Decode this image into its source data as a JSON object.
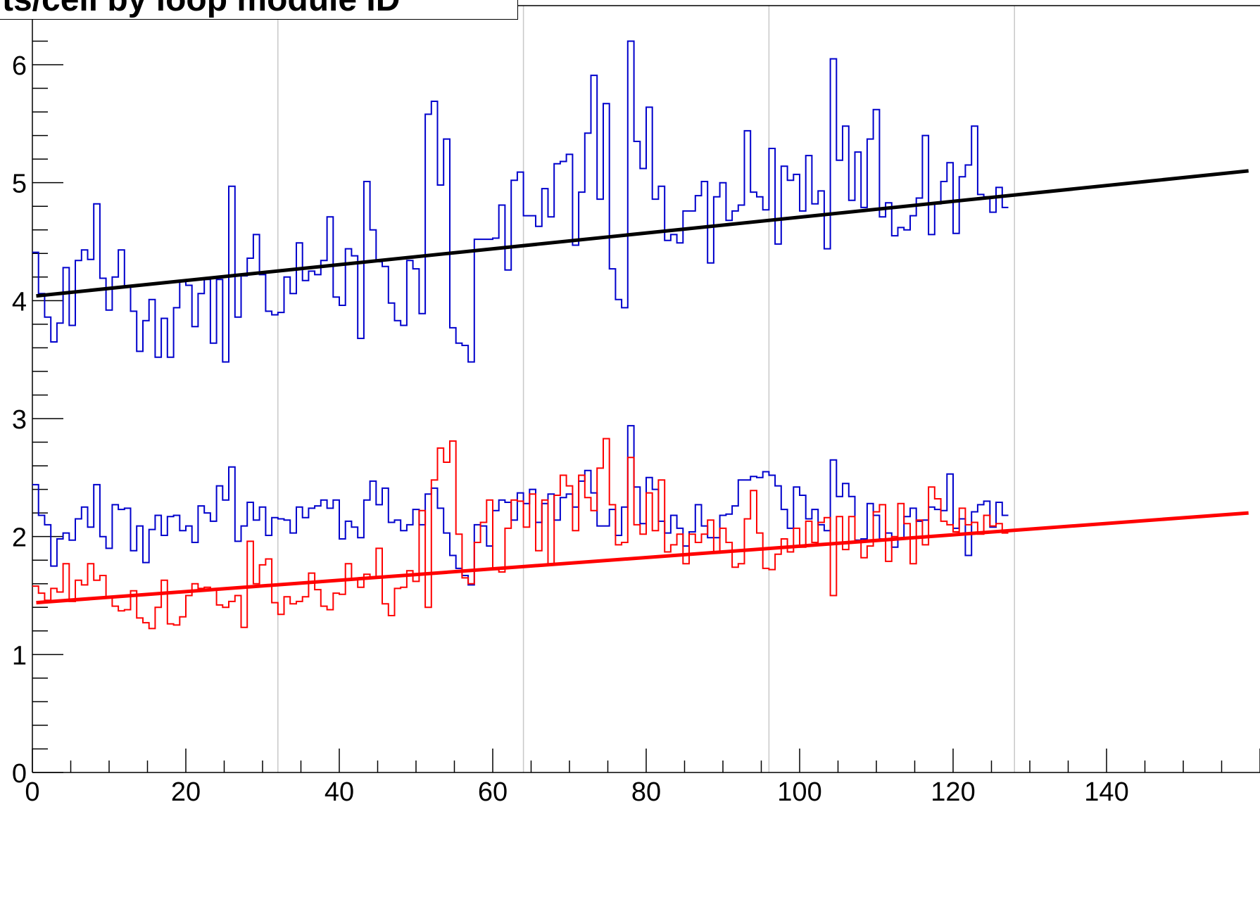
{
  "title": "ts/cell by loop module ID",
  "chart_data": {
    "type": "line",
    "title": "ts/cell by loop module ID",
    "xlabel": "",
    "ylabel": "",
    "xlim": [
      0,
      160
    ],
    "ylim": [
      0,
      6.3
    ],
    "x_ticks": [
      0,
      20,
      40,
      60,
      80,
      100,
      120,
      140
    ],
    "y_ticks": [
      0,
      1,
      2,
      3,
      4,
      5,
      6
    ],
    "vertical_grid_x": [
      32,
      64,
      96,
      128
    ],
    "colors": {
      "upper_hist": "#0000cc",
      "lower_hist_blue": "#0000cc",
      "lower_hist_red": "#ff0000",
      "fit_upper": "#000000",
      "fit_lower": "#ff0000",
      "grid": "#c8c8c8"
    },
    "bin_x_start": 0,
    "bin_width": 0.8,
    "series": [
      {
        "style": "step",
        "values": [
          4.41,
          4.06,
          3.86,
          3.65,
          3.81,
          4.28,
          3.79,
          4.34,
          4.43,
          4.35,
          4.82,
          4.19,
          3.92,
          4.2,
          4.43,
          4.12,
          3.91,
          3.57,
          3.83,
          4.01,
          3.52,
          3.85,
          3.52,
          3.94,
          4.16,
          4.13,
          3.78,
          4.06,
          4.18,
          3.64,
          4.18,
          3.48,
          4.97,
          3.86,
          4.21,
          4.36,
          4.56,
          4.22,
          3.91,
          3.88,
          3.9,
          4.2,
          4.06,
          4.49,
          4.17,
          4.25,
          4.22,
          4.34,
          4.71,
          4.03,
          3.96,
          4.44,
          4.38,
          3.68,
          5.01,
          4.6,
          4.33,
          4.29,
          3.98,
          3.83,
          3.79,
          4.34,
          4.27,
          3.89,
          5.58,
          5.69,
          4.98,
          5.37,
          3.77,
          3.64,
          3.62,
          3.48,
          4.52,
          4.52,
          4.52,
          4.53,
          4.81,
          4.26,
          5.02,
          5.09,
          4.72,
          4.72,
          4.63,
          4.95,
          4.71,
          5.16,
          5.18,
          5.24,
          4.47,
          4.92,
          5.42,
          5.91,
          4.86,
          5.67,
          4.27,
          4.01,
          3.94,
          6.2,
          5.35,
          5.12,
          5.64,
          4.86,
          4.97,
          4.51,
          4.56,
          4.49,
          4.76,
          4.76,
          4.89,
          5.01,
          4.32,
          4.88,
          5.0,
          4.68,
          4.76,
          4.81,
          5.44,
          4.92,
          4.88,
          4.77,
          5.29,
          4.48,
          5.14,
          5.02,
          5.07,
          4.76,
          5.23,
          4.82,
          4.93,
          4.44,
          6.05,
          5.19,
          5.48,
          4.85,
          5.26,
          4.79,
          5.37,
          5.62,
          4.71,
          4.83,
          4.55,
          4.62,
          4.6,
          4.72,
          4.87,
          5.4,
          4.56,
          4.82,
          5.01,
          5.17,
          4.57,
          5.05,
          5.15,
          5.48,
          4.9,
          4.88,
          4.75,
          4.96,
          4.79
        ]
      },
      {
        "style": "step",
        "values": [
          2.44,
          2.18,
          2.1,
          1.75,
          1.98,
          2.03,
          1.97,
          2.15,
          2.25,
          2.08,
          2.44,
          2.0,
          1.9,
          2.27,
          2.23,
          2.24,
          1.88,
          2.09,
          1.78,
          2.06,
          2.18,
          2.01,
          2.17,
          2.18,
          2.05,
          2.09,
          1.95,
          2.26,
          2.2,
          2.13,
          2.43,
          2.31,
          2.59,
          1.96,
          2.09,
          2.29,
          2.14,
          2.25,
          2.01,
          2.16,
          2.15,
          2.14,
          2.03,
          2.25,
          2.16,
          2.24,
          2.26,
          2.31,
          2.24,
          2.31,
          1.98,
          2.13,
          2.08,
          1.99,
          2.31,
          2.47,
          2.27,
          2.41,
          2.12,
          2.14,
          2.05,
          2.1,
          2.23,
          2.1,
          2.36,
          2.41,
          2.24,
          2.03,
          1.84,
          1.73,
          1.67,
          1.59,
          2.1,
          2.09,
          1.92,
          2.22,
          2.31,
          2.29,
          2.14,
          2.37,
          2.28,
          2.4,
          2.12,
          2.28,
          2.36,
          2.14,
          2.33,
          2.36,
          2.25,
          2.47,
          2.56,
          2.37,
          2.09,
          2.09,
          2.23,
          2.01,
          2.25,
          2.94,
          2.42,
          2.11,
          2.5,
          2.4,
          2.13,
          2.03,
          2.18,
          2.07,
          1.92,
          2.04,
          2.27,
          2.09,
          1.99,
          1.99,
          2.18,
          2.19,
          2.26,
          2.48,
          2.48,
          2.51,
          2.5,
          2.55,
          2.52,
          2.43,
          2.23,
          2.07,
          2.42,
          2.35,
          2.15,
          2.23,
          2.1,
          2.05,
          2.65,
          2.34,
          2.45,
          2.34,
          1.97,
          1.98,
          2.28,
          2.18,
          1.98,
          2.03,
          1.91,
          1.98,
          2.17,
          2.24,
          2.13,
          2.14,
          2.25,
          2.23,
          2.22,
          2.53,
          2.07,
          2.15,
          1.84,
          2.21,
          2.27,
          2.3,
          2.08,
          2.29,
          2.18
        ]
      },
      {
        "style": "step",
        "values": [
          1.58,
          1.52,
          1.46,
          1.56,
          1.53,
          1.77,
          1.45,
          1.63,
          1.59,
          1.77,
          1.63,
          1.67,
          1.49,
          1.41,
          1.37,
          1.38,
          1.54,
          1.31,
          1.27,
          1.22,
          1.4,
          1.63,
          1.26,
          1.25,
          1.32,
          1.5,
          1.6,
          1.56,
          1.57,
          1.55,
          1.42,
          1.4,
          1.45,
          1.5,
          1.23,
          1.96,
          1.6,
          1.76,
          1.81,
          1.44,
          1.34,
          1.49,
          1.43,
          1.45,
          1.49,
          1.69,
          1.55,
          1.41,
          1.38,
          1.52,
          1.51,
          1.77,
          1.64,
          1.57,
          1.68,
          1.65,
          1.9,
          1.43,
          1.33,
          1.56,
          1.57,
          1.71,
          1.62,
          2.22,
          1.4,
          2.48,
          2.75,
          2.63,
          2.81,
          2.02,
          1.65,
          1.6,
          1.95,
          2.12,
          2.31,
          1.72,
          1.7,
          2.07,
          2.31,
          2.3,
          2.08,
          2.36,
          1.88,
          2.31,
          1.76,
          2.35,
          2.52,
          2.43,
          2.05,
          2.52,
          2.33,
          2.22,
          2.58,
          2.83,
          2.27,
          1.93,
          1.95,
          2.67,
          2.1,
          2.02,
          2.37,
          2.05,
          2.48,
          1.87,
          1.93,
          2.02,
          1.77,
          2.02,
          1.95,
          2.02,
          2.14,
          1.86,
          2.07,
          1.95,
          1.74,
          1.77,
          2.15,
          2.39,
          2.03,
          1.73,
          1.72,
          1.85,
          1.98,
          1.87,
          2.07,
          1.91,
          2.13,
          1.95,
          2.12,
          2.16,
          1.5,
          2.17,
          1.89,
          2.17,
          1.95,
          1.82,
          1.92,
          2.21,
          2.27,
          1.79,
          2.0,
          2.28,
          2.11,
          1.77,
          2.14,
          1.93,
          2.42,
          2.32,
          2.13,
          2.1,
          2.04,
          2.24,
          2.1,
          2.12,
          2.02,
          2.18,
          2.09,
          2.11,
          2.03
        ]
      },
      {
        "style": "line",
        "values": [
          4.04,
          5.1
        ],
        "x": [
          0.5,
          158.5
        ]
      },
      {
        "style": "line",
        "values": [
          1.44,
          2.2
        ],
        "x": [
          0.5,
          158.5
        ]
      }
    ]
  }
}
